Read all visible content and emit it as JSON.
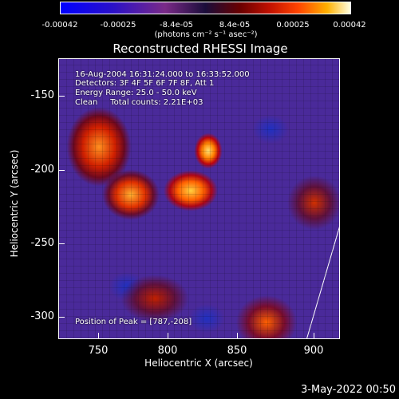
{
  "colorbar": {
    "ticks": [
      "-0.00042",
      "-0.00025",
      "-8.4e-05",
      "8.4e-05",
      "0.00025",
      "0.00042"
    ],
    "unit": "(photons cm⁻² s⁻¹ asec⁻²)"
  },
  "plot": {
    "title": "Reconstructed RHESSI Image",
    "info": {
      "time": "16-Aug-2004 16:31:24.000 to 16:33:52.000",
      "detectors": "Detectors: 3F 4F 5F 6F 7F 8F, Att 1",
      "energy": "Energy Range: 25.0 - 50.0 keV",
      "method": "Clean     Total counts: 2.21E+03"
    },
    "peak": "Position of Peak = [787,-208]",
    "xlabel": "Heliocentric X (arcsec)",
    "ylabel": "Heliocentric Y (arcsec)",
    "xticks": [
      "750",
      "800",
      "850",
      "900"
    ],
    "yticks": [
      "-150",
      "-200",
      "-250",
      "-300"
    ]
  },
  "footer": {
    "timestamp": "3-May-2022 00:50"
  },
  "colors": {
    "background": "#000000",
    "foreground": "#ffffff"
  }
}
